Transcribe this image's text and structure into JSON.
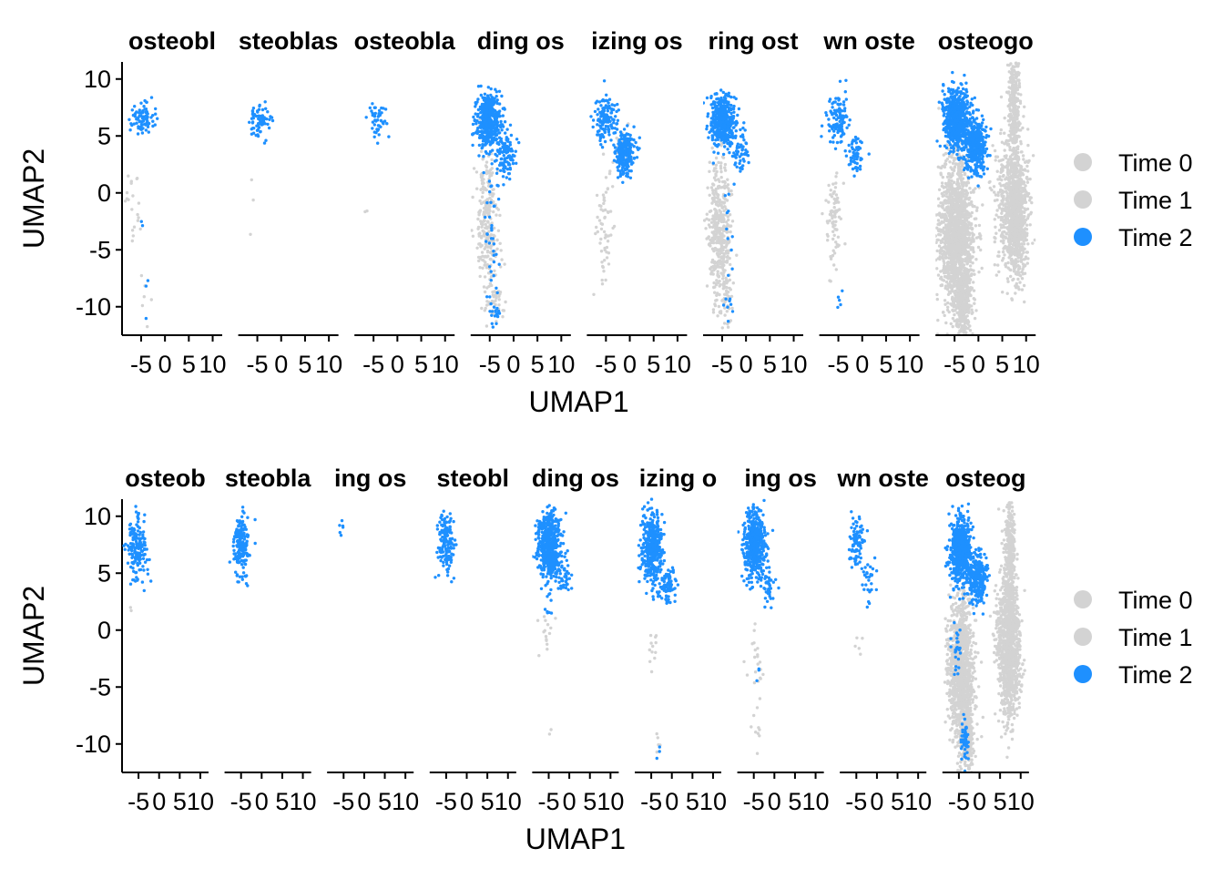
{
  "chart_data": [
    {
      "type": "scatter",
      "xlabel": "UMAP1",
      "ylabel": "UMAP2",
      "xlim": [
        -9,
        12
      ],
      "ylim": [
        -12.5,
        11.5
      ],
      "xticks": [
        -5,
        0,
        5,
        10
      ],
      "yticks": [
        10,
        5,
        0,
        -5,
        -10
      ],
      "xtick_labels": [
        "-5",
        "0",
        "5",
        "10"
      ],
      "ytick_labels": [
        "10",
        "5",
        "0",
        "-5",
        "-10"
      ],
      "grid": false,
      "legend_position": "right",
      "legend": [
        {
          "name": "Time 0",
          "color": "#d3d3d3"
        },
        {
          "name": "Time 1",
          "color": "#d3d3d3"
        },
        {
          "name": "Time 2",
          "color": "#1e90ff"
        }
      ],
      "panels": [
        {
          "title": "osteobl",
          "clusters": [
            {
              "color": "#d3d3d3",
              "cx": -6.5,
              "cy": -1.0,
              "sx": 0.8,
              "sy": 2.0,
              "n": 20
            },
            {
              "color": "#d3d3d3",
              "cx": -4.5,
              "cy": -8.0,
              "sx": 0.8,
              "sy": 1.5,
              "n": 6
            },
            {
              "color": "#1e90ff",
              "cx": -5.0,
              "cy": 6.5,
              "sx": 1.3,
              "sy": 0.7,
              "n": 80
            },
            {
              "color": "#1e90ff",
              "cx": -4.0,
              "cy": -7.5,
              "sx": 0.6,
              "sy": 2.5,
              "n": 5
            }
          ]
        },
        {
          "title": "steoblas",
          "clusters": [
            {
              "color": "#d3d3d3",
              "cx": -6.5,
              "cy": -0.5,
              "sx": 0.6,
              "sy": 2.5,
              "n": 3
            },
            {
              "color": "#1e90ff",
              "cx": -4.5,
              "cy": 6.3,
              "sx": 1.2,
              "sy": 0.8,
              "n": 70
            }
          ]
        },
        {
          "title": "osteobla",
          "clusters": [
            {
              "color": "#d3d3d3",
              "cx": -6.5,
              "cy": -1.2,
              "sx": 0.5,
              "sy": 0.5,
              "n": 2
            },
            {
              "color": "#1e90ff",
              "cx": -4.0,
              "cy": 6.5,
              "sx": 1.0,
              "sy": 0.9,
              "n": 45
            }
          ]
        },
        {
          "title": "ding os",
          "clusters": [
            {
              "color": "#d3d3d3",
              "cx": -5.5,
              "cy": -2.5,
              "sx": 1.2,
              "sy": 3.2,
              "n": 260
            },
            {
              "color": "#d3d3d3",
              "cx": -4.0,
              "cy": -9.5,
              "sx": 0.8,
              "sy": 1.0,
              "n": 40
            },
            {
              "color": "#1e90ff",
              "cx": -5.2,
              "cy": 6.3,
              "sx": 1.3,
              "sy": 1.2,
              "n": 420
            },
            {
              "color": "#1e90ff",
              "cx": -1.5,
              "cy": 3.5,
              "sx": 1.0,
              "sy": 0.9,
              "n": 100
            },
            {
              "color": "#1e90ff",
              "cx": -4.5,
              "cy": -5.0,
              "sx": 0.7,
              "sy": 3.5,
              "n": 40
            },
            {
              "color": "#1e90ff",
              "cx": -3.8,
              "cy": -10.5,
              "sx": 0.6,
              "sy": 0.7,
              "n": 15
            }
          ]
        },
        {
          "title": "izing os",
          "clusters": [
            {
              "color": "#d3d3d3",
              "cx": -5.5,
              "cy": -3.0,
              "sx": 1.0,
              "sy": 3.0,
              "n": 60
            },
            {
              "color": "#d3d3d3",
              "cx": -1.0,
              "cy": 4.0,
              "sx": 1.0,
              "sy": 0.9,
              "n": 30
            },
            {
              "color": "#1e90ff",
              "cx": -5.0,
              "cy": 6.5,
              "sx": 1.1,
              "sy": 1.0,
              "n": 140
            },
            {
              "color": "#1e90ff",
              "cx": -1.0,
              "cy": 3.5,
              "sx": 1.0,
              "sy": 0.9,
              "n": 230
            }
          ]
        },
        {
          "title": "ring ost",
          "clusters": [
            {
              "color": "#d3d3d3",
              "cx": -5.5,
              "cy": -3.5,
              "sx": 1.2,
              "sy": 3.0,
              "n": 420
            },
            {
              "color": "#d3d3d3",
              "cx": -4.0,
              "cy": -9.5,
              "sx": 0.7,
              "sy": 1.2,
              "n": 30
            },
            {
              "color": "#1e90ff",
              "cx": -5.0,
              "cy": 6.3,
              "sx": 1.3,
              "sy": 1.2,
              "n": 420
            },
            {
              "color": "#1e90ff",
              "cx": -1.5,
              "cy": 3.5,
              "sx": 1.0,
              "sy": 1.0,
              "n": 60
            },
            {
              "color": "#1e90ff",
              "cx": -4.0,
              "cy": -4.0,
              "sx": 0.6,
              "sy": 2.0,
              "n": 10
            },
            {
              "color": "#1e90ff",
              "cx": -3.5,
              "cy": -10.2,
              "sx": 0.5,
              "sy": 0.6,
              "n": 8
            }
          ]
        },
        {
          "title": "wn oste",
          "clusters": [
            {
              "color": "#d3d3d3",
              "cx": -6.0,
              "cy": -2.5,
              "sx": 0.8,
              "sy": 2.2,
              "n": 80
            },
            {
              "color": "#1e90ff",
              "cx": -5.0,
              "cy": 6.5,
              "sx": 1.2,
              "sy": 1.0,
              "n": 110
            },
            {
              "color": "#1e90ff",
              "cx": -1.5,
              "cy": 3.5,
              "sx": 0.9,
              "sy": 0.8,
              "n": 60
            },
            {
              "color": "#1e90ff",
              "cx": -4.5,
              "cy": -10.0,
              "sx": 0.4,
              "sy": 0.8,
              "n": 5
            }
          ]
        },
        {
          "title": "osteogo",
          "clusters": [
            {
              "color": "#d3d3d3",
              "cx": -4.5,
              "cy": -3.5,
              "sx": 1.8,
              "sy": 3.2,
              "n": 1500
            },
            {
              "color": "#d3d3d3",
              "cx": -3.2,
              "cy": -9.5,
              "sx": 0.9,
              "sy": 1.4,
              "n": 300
            },
            {
              "color": "#d3d3d3",
              "cx": 8.0,
              "cy": -1.5,
              "sx": 1.2,
              "sy": 2.8,
              "n": 900
            },
            {
              "color": "#d3d3d3",
              "cx": 7.5,
              "cy": 7.5,
              "sx": 0.6,
              "sy": 2.5,
              "n": 300
            },
            {
              "color": "#d3d3d3",
              "cx": 5.5,
              "cy": 0.0,
              "sx": 1.2,
              "sy": 3.0,
              "n": 200
            },
            {
              "color": "#1e90ff",
              "cx": -4.5,
              "cy": 6.5,
              "sx": 1.3,
              "sy": 1.3,
              "n": 650
            },
            {
              "color": "#1e90ff",
              "cx": -0.5,
              "cy": 4.0,
              "sx": 1.1,
              "sy": 1.2,
              "n": 350
            }
          ]
        }
      ]
    },
    {
      "type": "scatter",
      "xlabel": "UMAP1",
      "ylabel": "UMAP2",
      "xlim": [
        -9,
        12
      ],
      "ylim": [
        -12.5,
        11.5
      ],
      "xticks": [
        -5,
        0,
        5,
        10
      ],
      "yticks": [
        10,
        5,
        0,
        -5,
        -10
      ],
      "xtick_labels": [
        "-5",
        "0",
        "5",
        "10"
      ],
      "ytick_labels": [
        "10",
        "5",
        "0",
        "-5",
        "-10"
      ],
      "grid": false,
      "legend_position": "right",
      "legend": [
        {
          "name": "Time 0",
          "color": "#d3d3d3"
        },
        {
          "name": "Time 1",
          "color": "#d3d3d3"
        },
        {
          "name": "Time 2",
          "color": "#1e90ff"
        }
      ],
      "panels": [
        {
          "title": "osteob",
          "clusters": [
            {
              "color": "#d3d3d3",
              "cx": -7.0,
              "cy": 2.0,
              "sx": 0.3,
              "sy": 0.3,
              "n": 2
            },
            {
              "color": "#1e90ff",
              "cx": -5.5,
              "cy": 7.0,
              "sx": 1.2,
              "sy": 1.3,
              "n": 170
            }
          ]
        },
        {
          "title": "steobla",
          "clusters": [
            {
              "color": "#1e90ff",
              "cx": -5.0,
              "cy": 7.5,
              "sx": 1.0,
              "sy": 1.3,
              "n": 180
            }
          ]
        },
        {
          "title": "ing os",
          "clusters": [
            {
              "color": "#1e90ff",
              "cx": -5.5,
              "cy": 9.0,
              "sx": 0.6,
              "sy": 0.5,
              "n": 6
            }
          ]
        },
        {
          "title": "steobl",
          "clusters": [
            {
              "color": "#1e90ff",
              "cx": -5.0,
              "cy": 7.8,
              "sx": 1.1,
              "sy": 1.3,
              "n": 150
            }
          ]
        },
        {
          "title": "ding os",
          "clusters": [
            {
              "color": "#d3d3d3",
              "cx": -5.5,
              "cy": -0.5,
              "sx": 0.8,
              "sy": 1.0,
              "n": 15
            },
            {
              "color": "#d3d3d3",
              "cx": -4.5,
              "cy": -9.0,
              "sx": 0.3,
              "sy": 0.3,
              "n": 2
            },
            {
              "color": "#1e90ff",
              "cx": -4.8,
              "cy": 7.5,
              "sx": 1.4,
              "sy": 1.5,
              "n": 550
            },
            {
              "color": "#1e90ff",
              "cx": -1.5,
              "cy": 4.5,
              "sx": 0.8,
              "sy": 0.8,
              "n": 40
            },
            {
              "color": "#1e90ff",
              "cx": -5.0,
              "cy": 2.5,
              "sx": 0.5,
              "sy": 0.8,
              "n": 10
            }
          ]
        },
        {
          "title": "izing o",
          "clusters": [
            {
              "color": "#d3d3d3",
              "cx": -4.5,
              "cy": -1.5,
              "sx": 0.8,
              "sy": 0.8,
              "n": 12
            },
            {
              "color": "#d3d3d3",
              "cx": -3.5,
              "cy": -10.0,
              "sx": 0.5,
              "sy": 0.6,
              "n": 5
            },
            {
              "color": "#1e90ff",
              "cx": -4.8,
              "cy": 7.3,
              "sx": 1.2,
              "sy": 1.5,
              "n": 400
            },
            {
              "color": "#1e90ff",
              "cx": -1.0,
              "cy": 3.8,
              "sx": 0.9,
              "sy": 0.8,
              "n": 80
            },
            {
              "color": "#1e90ff",
              "cx": -3.0,
              "cy": -10.5,
              "sx": 0.3,
              "sy": 0.3,
              "n": 3
            }
          ]
        },
        {
          "title": "ing os",
          "clusters": [
            {
              "color": "#d3d3d3",
              "cx": -4.5,
              "cy": -3.5,
              "sx": 0.8,
              "sy": 2.5,
              "n": 25
            },
            {
              "color": "#d3d3d3",
              "cx": -3.5,
              "cy": -9.5,
              "sx": 0.4,
              "sy": 0.6,
              "n": 5
            },
            {
              "color": "#1e90ff",
              "cx": -4.8,
              "cy": 7.5,
              "sx": 1.3,
              "sy": 1.5,
              "n": 500
            },
            {
              "color": "#1e90ff",
              "cx": -1.5,
              "cy": 4.0,
              "sx": 0.9,
              "sy": 0.8,
              "n": 40
            },
            {
              "color": "#1e90ff",
              "cx": -4.0,
              "cy": -3.5,
              "sx": 0.4,
              "sy": 0.6,
              "n": 3
            }
          ]
        },
        {
          "title": "wn oste",
          "clusters": [
            {
              "color": "#d3d3d3",
              "cx": -4.5,
              "cy": -1.5,
              "sx": 0.6,
              "sy": 0.6,
              "n": 5
            },
            {
              "color": "#1e90ff",
              "cx": -5.0,
              "cy": 7.5,
              "sx": 1.0,
              "sy": 1.2,
              "n": 90
            },
            {
              "color": "#1e90ff",
              "cx": -2.0,
              "cy": 4.5,
              "sx": 0.9,
              "sy": 1.0,
              "n": 30
            }
          ]
        },
        {
          "title": "osteog",
          "clusters": [
            {
              "color": "#d3d3d3",
              "cx": -4.5,
              "cy": -3.5,
              "sx": 1.5,
              "sy": 3.2,
              "n": 1200
            },
            {
              "color": "#d3d3d3",
              "cx": -3.0,
              "cy": -9.5,
              "sx": 0.8,
              "sy": 1.3,
              "n": 250
            },
            {
              "color": "#d3d3d3",
              "cx": 7.5,
              "cy": -1.5,
              "sx": 1.2,
              "sy": 3.0,
              "n": 900
            },
            {
              "color": "#d3d3d3",
              "cx": 7.5,
              "cy": 7.5,
              "sx": 0.6,
              "sy": 2.5,
              "n": 300
            },
            {
              "color": "#d3d3d3",
              "cx": 5.5,
              "cy": 0.0,
              "sx": 1.0,
              "sy": 3.0,
              "n": 200
            },
            {
              "color": "#1e90ff",
              "cx": -4.5,
              "cy": 7.0,
              "sx": 1.3,
              "sy": 1.5,
              "n": 600
            },
            {
              "color": "#1e90ff",
              "cx": -0.5,
              "cy": 4.5,
              "sx": 1.1,
              "sy": 1.2,
              "n": 250
            },
            {
              "color": "#1e90ff",
              "cx": -3.5,
              "cy": -9.5,
              "sx": 0.5,
              "sy": 1.0,
              "n": 60
            },
            {
              "color": "#1e90ff",
              "cx": -5.5,
              "cy": -2.0,
              "sx": 0.5,
              "sy": 1.5,
              "n": 25
            }
          ]
        }
      ]
    }
  ]
}
